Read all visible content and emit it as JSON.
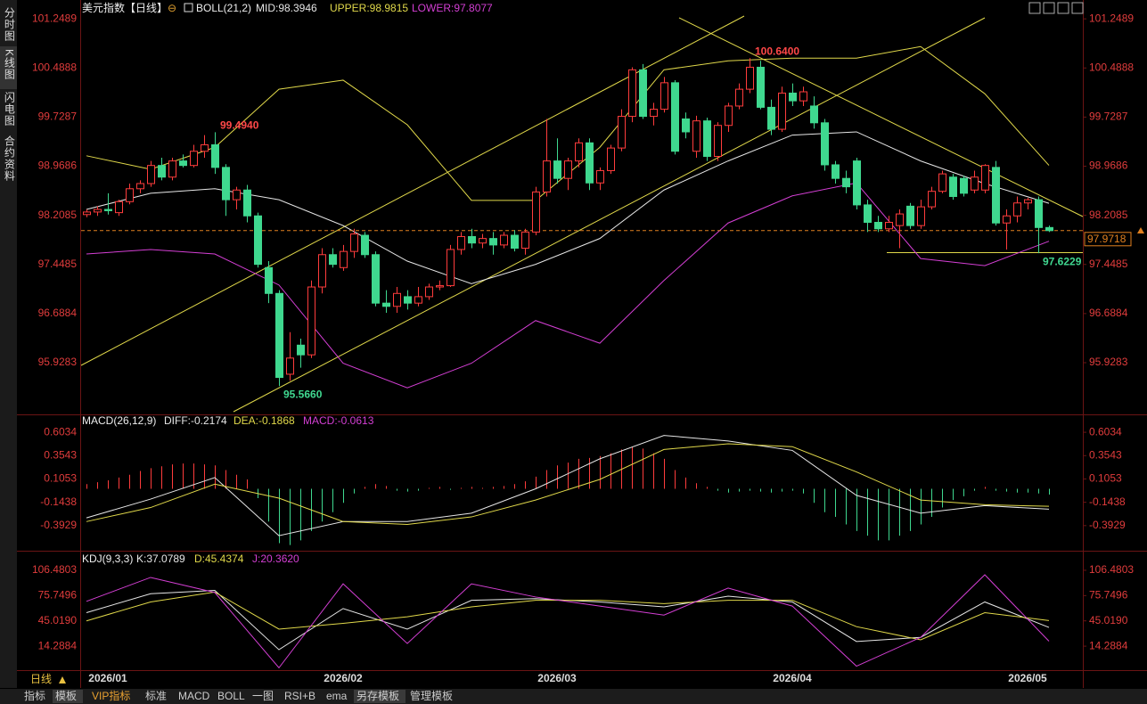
{
  "ui": {
    "sidebar": [
      "分时图",
      "K线图",
      "闪电图",
      "合约资料"
    ],
    "period": "日线",
    "toolbar": [
      "指标",
      "模板",
      "VIP指标",
      "标准",
      "MACD",
      "BOLL",
      "一图",
      "RSI+B",
      "ema",
      "另存模板",
      "管理模板"
    ]
  },
  "chart_data": [
    {
      "type": "candlestick",
      "title": "美元指数【日线】",
      "indicator": "BOLL(21,2)",
      "categories": [
        null,
        null,
        "2026/01",
        null,
        null,
        null,
        null,
        null,
        null,
        null,
        null,
        null,
        null,
        null,
        null,
        null,
        null,
        null,
        null,
        null,
        null,
        null,
        null,
        null,
        "2026/02",
        null,
        null,
        null,
        null,
        null,
        null,
        null,
        null,
        null,
        null,
        null,
        null,
        null,
        null,
        null,
        null,
        null,
        null,
        null,
        "2026/03",
        null,
        null,
        null,
        null,
        null,
        null,
        null,
        null,
        null,
        null,
        null,
        null,
        null,
        null,
        null,
        null,
        null,
        null,
        null,
        null,
        null,
        "2026/04",
        null,
        null,
        null,
        null,
        null,
        null,
        null,
        null,
        null,
        null,
        null,
        null,
        null,
        null,
        null,
        null,
        null,
        null,
        null,
        null,
        null,
        "2026/05",
        null,
        null
      ],
      "open": [
        98.22,
        98.26,
        98.3,
        98.25,
        98.42,
        98.62,
        98.7,
        98.98,
        98.8,
        99.05,
        98.98,
        99.2,
        99.3,
        98.95,
        98.45,
        98.6,
        98.2,
        97.4,
        97.0,
        95.75,
        96.2,
        96.05,
        97.1,
        97.6,
        97.4,
        97.65,
        97.9,
        97.6,
        96.85,
        96.8,
        96.95,
        96.85,
        96.95,
        97.1,
        97.12,
        97.68,
        97.88,
        97.78,
        97.85,
        97.75,
        97.9,
        97.7,
        97.95,
        98.57,
        99.05,
        98.78,
        99.05,
        99.33,
        98.71,
        98.9,
        99.25,
        99.74,
        100.46,
        99.74,
        99.85,
        100.26,
        99.7,
        99.2,
        99.67,
        99.12,
        99.6,
        99.9,
        100.16,
        100.5,
        99.88,
        99.54,
        100.1,
        99.98,
        99.9,
        99.64,
        98.99,
        98.78,
        99.05,
        98.37,
        98.1,
        98.0,
        98.05,
        98.35,
        98.05,
        98.34,
        98.58,
        98.8,
        98.78,
        98.6,
        98.6,
        98.95,
        98.09,
        98.2,
        98.4,
        98.45,
        98.02
      ],
      "high": [
        98.3,
        98.35,
        98.55,
        98.45,
        98.7,
        98.75,
        99.05,
        99.1,
        99.1,
        99.15,
        99.3,
        99.45,
        99.494,
        99.0,
        98.65,
        98.68,
        98.25,
        97.5,
        97.05,
        96.4,
        96.3,
        97.2,
        97.7,
        97.7,
        97.75,
        98.0,
        97.95,
        97.65,
        97.05,
        97.1,
        97.05,
        97.1,
        97.15,
        97.2,
        97.75,
        97.95,
        98.0,
        97.92,
        97.95,
        97.95,
        97.98,
        98.0,
        98.65,
        99.7,
        99.4,
        99.1,
        99.4,
        99.4,
        98.95,
        99.3,
        99.85,
        100.5,
        100.55,
        99.95,
        100.35,
        100.3,
        99.8,
        99.75,
        99.72,
        99.65,
        99.95,
        100.25,
        100.64,
        100.6,
        100.0,
        100.2,
        100.25,
        100.2,
        100.05,
        99.7,
        99.05,
        98.9,
        99.1,
        98.45,
        98.2,
        98.2,
        98.3,
        98.4,
        98.45,
        98.65,
        98.9,
        98.85,
        98.82,
        98.9,
        99.0,
        99.05,
        98.3,
        98.5,
        98.48,
        98.5,
        98.05
      ],
      "low": [
        98.18,
        98.2,
        98.22,
        98.2,
        98.38,
        98.55,
        98.65,
        98.75,
        98.75,
        98.95,
        98.95,
        99.1,
        98.85,
        98.2,
        98.3,
        98.1,
        97.4,
        96.85,
        95.566,
        95.65,
        95.85,
        96.0,
        97.0,
        97.4,
        97.35,
        97.55,
        97.55,
        96.8,
        96.7,
        96.7,
        96.75,
        96.8,
        96.9,
        97.05,
        97.1,
        97.6,
        97.7,
        97.7,
        97.6,
        97.7,
        97.65,
        97.6,
        97.9,
        98.5,
        98.7,
        98.6,
        98.95,
        98.6,
        98.6,
        98.85,
        99.2,
        99.65,
        99.7,
        99.6,
        99.8,
        99.15,
        99.4,
        99.1,
        99.05,
        99.05,
        99.5,
        99.85,
        100.1,
        99.85,
        99.45,
        99.5,
        99.9,
        99.9,
        99.55,
        98.9,
        98.7,
        98.55,
        98.3,
        97.95,
        97.95,
        97.95,
        97.7,
        98.0,
        98.0,
        98.3,
        98.55,
        98.45,
        98.5,
        98.55,
        98.55,
        98.05,
        97.68,
        98.1,
        98.3,
        97.6229,
        97.95
      ],
      "close": [
        98.26,
        98.3,
        98.28,
        98.42,
        98.62,
        98.7,
        98.98,
        98.8,
        99.05,
        98.98,
        99.2,
        99.3,
        98.95,
        98.45,
        98.6,
        98.2,
        97.45,
        97.0,
        95.7,
        96.0,
        96.05,
        97.1,
        97.6,
        97.45,
        97.65,
        97.92,
        97.6,
        96.85,
        96.8,
        97.0,
        96.85,
        96.95,
        97.1,
        97.12,
        97.68,
        97.88,
        97.78,
        97.85,
        97.75,
        97.9,
        97.7,
        97.95,
        98.57,
        99.05,
        98.78,
        99.05,
        99.33,
        98.71,
        98.9,
        99.25,
        99.74,
        100.46,
        99.74,
        99.85,
        100.26,
        99.2,
        99.5,
        99.67,
        99.12,
        99.6,
        99.9,
        100.16,
        100.5,
        99.88,
        99.54,
        100.1,
        99.98,
        100.12,
        99.64,
        98.99,
        98.78,
        98.65,
        98.37,
        98.1,
        98.0,
        98.1,
        98.23,
        98.05,
        98.34,
        98.58,
        98.85,
        98.5,
        98.55,
        98.8,
        98.98,
        98.09,
        98.2,
        98.4,
        98.45,
        98.02,
        97.9718
      ],
      "high_labels": [
        null,
        null,
        null,
        null,
        null,
        null,
        null,
        null,
        null,
        null,
        null,
        null,
        "99.4940",
        null,
        null,
        null,
        null,
        null,
        null,
        null,
        null,
        null,
        null,
        null,
        null,
        null,
        null,
        null,
        null,
        null,
        null,
        null,
        null,
        null,
        null,
        null,
        null,
        null,
        null,
        null,
        null,
        null,
        null,
        null,
        null,
        null,
        null,
        null,
        null,
        null,
        null,
        null,
        null,
        null,
        null,
        null,
        null,
        null,
        null,
        null,
        null,
        null,
        "100.6400",
        null,
        null,
        null,
        null,
        null,
        null,
        null,
        null,
        null,
        null,
        null,
        null,
        null,
        null,
        null,
        null,
        null,
        null,
        null,
        null,
        null,
        null,
        null,
        null,
        null,
        null,
        null,
        null
      ],
      "low_labels": [
        null,
        null,
        null,
        null,
        null,
        null,
        null,
        null,
        null,
        null,
        null,
        null,
        null,
        null,
        null,
        null,
        null,
        null,
        "95.5660",
        null,
        null,
        null,
        null,
        null,
        null,
        null,
        null,
        null,
        null,
        null,
        null,
        null,
        null,
        null,
        null,
        null,
        null,
        null,
        null,
        null,
        null,
        null,
        null,
        null,
        null,
        null,
        null,
        null,
        null,
        null,
        null,
        null,
        null,
        null,
        null,
        null,
        null,
        null,
        null,
        null,
        null,
        null,
        null,
        null,
        null,
        null,
        null,
        null,
        null,
        null,
        null,
        null,
        null,
        null,
        null,
        null,
        null,
        null,
        null,
        null,
        null,
        null,
        null,
        null,
        null,
        null,
        null,
        null,
        null,
        "97.6229",
        null
      ],
      "close_labels": [
        null,
        null,
        null,
        null,
        null,
        null,
        null,
        null,
        null,
        null,
        null,
        null,
        null,
        null,
        null,
        null,
        null,
        null,
        null,
        null,
        null,
        null,
        null,
        null,
        null,
        null,
        null,
        null,
        null,
        null,
        null,
        null,
        null,
        null,
        null,
        null,
        null,
        null,
        null,
        null,
        null,
        null,
        null,
        null,
        null,
        null,
        null,
        null,
        null,
        null,
        null,
        null,
        null,
        null,
        null,
        null,
        null,
        null,
        null,
        null,
        null,
        null,
        null,
        null,
        null,
        null,
        null,
        null,
        null,
        null,
        null,
        null,
        null,
        null,
        null,
        null,
        null,
        null,
        null,
        null,
        null,
        null,
        null,
        null,
        null,
        null,
        null,
        null,
        null,
        null,
        "97.9718"
      ],
      "up_color": "#ff3c3c",
      "down_color": "#3fd88f",
      "series": [
        {
          "name": "MID:98.3946",
          "color": "#e6e6e6",
          "x": [
            0,
            6,
            12,
            18,
            24,
            30,
            36,
            42,
            48,
            54,
            60,
            66,
            72,
            78,
            84,
            90
          ],
          "values": [
            98.3,
            98.55,
            98.62,
            98.45,
            98.05,
            97.5,
            97.15,
            97.45,
            97.85,
            98.6,
            99.05,
            99.45,
            99.5,
            99.05,
            98.7,
            98.3946
          ]
        },
        {
          "name": "UPPER:98.9815",
          "color": "#e0d84a",
          "x": [
            0,
            6,
            12,
            18,
            24,
            30,
            36,
            42,
            48,
            54,
            60,
            66,
            72,
            78,
            84,
            90
          ],
          "values": [
            99.13,
            98.92,
            99.26,
            100.16,
            100.3,
            99.61,
            98.44,
            98.44,
            99.26,
            100.46,
            100.6,
            100.64,
            100.64,
            100.82,
            100.09,
            98.9815
          ]
        },
        {
          "name": "LOWER:97.8077",
          "color": "#d43fd4",
          "x": [
            0,
            6,
            12,
            18,
            24,
            30,
            36,
            42,
            48,
            54,
            60,
            66,
            72,
            78,
            84,
            90
          ],
          "values": [
            97.61,
            97.68,
            97.61,
            97.13,
            95.92,
            95.54,
            95.92,
            96.58,
            96.23,
            97.2,
            98.09,
            98.51,
            98.71,
            97.54,
            97.43,
            97.8077
          ]
        }
      ],
      "ylim": [
        95.17,
        101.43
      ],
      "yticks": [
        101.2489,
        100.4888,
        99.7287,
        98.9686,
        98.2085,
        97.4485,
        96.6884,
        95.9283
      ]
    },
    {
      "type": "macd",
      "title": "MACD(26,12,9)",
      "series": [
        {
          "name": "DIFF:-0.2174",
          "color": "#e6e6e6",
          "x": [
            0,
            6,
            12,
            18,
            24,
            30,
            36,
            42,
            48,
            54,
            60,
            66,
            72,
            78,
            84,
            90
          ],
          "values": [
            -0.31,
            -0.11,
            0.12,
            -0.5,
            -0.35,
            -0.35,
            -0.26,
            0.0,
            0.32,
            0.57,
            0.51,
            0.41,
            -0.07,
            -0.26,
            -0.18,
            -0.2174
          ]
        },
        {
          "name": "DEA:-0.1868",
          "color": "#e0d84a",
          "x": [
            0,
            6,
            12,
            18,
            24,
            30,
            36,
            42,
            48,
            54,
            60,
            66,
            72,
            78,
            84,
            90
          ],
          "values": [
            -0.35,
            -0.2,
            0.05,
            -0.1,
            -0.35,
            -0.38,
            -0.3,
            -0.12,
            0.1,
            0.42,
            0.48,
            0.45,
            0.18,
            -0.12,
            -0.17,
            -0.1868
          ]
        },
        {
          "name": "MACD:-0.0613",
          "color": "#d43fd4",
          "up_color": "#ff3c3c",
          "down_color": "#3fd88f",
          "values": [
            0.05,
            0.07,
            0.09,
            0.12,
            0.15,
            0.19,
            0.22,
            0.24,
            0.26,
            0.27,
            0.27,
            0.26,
            0.25,
            0.2,
            0.15,
            0.1,
            -0.1,
            -0.35,
            -0.58,
            -0.6,
            -0.55,
            -0.45,
            -0.35,
            -0.25,
            -0.15,
            -0.05,
            0.02,
            0.05,
            0.03,
            -0.02,
            -0.03,
            -0.02,
            0.01,
            0.02,
            -0.01,
            0.01,
            0.02,
            0.01,
            0.02,
            0.03,
            0.05,
            0.08,
            0.13,
            0.2,
            0.25,
            0.28,
            0.32,
            0.33,
            0.35,
            0.38,
            0.42,
            0.45,
            0.43,
            0.38,
            0.32,
            0.2,
            0.12,
            0.06,
            0.02,
            -0.02,
            -0.04,
            -0.03,
            -0.02,
            -0.03,
            -0.04,
            -0.03,
            -0.02,
            -0.05,
            -0.15,
            -0.25,
            -0.3,
            -0.38,
            -0.45,
            -0.5,
            -0.55,
            -0.55,
            -0.5,
            -0.45,
            -0.38,
            -0.3,
            -0.2,
            -0.12,
            -0.08,
            -0.02,
            0.02,
            -0.02,
            -0.03,
            -0.04,
            -0.04,
            -0.05,
            -0.0613
          ]
        }
      ],
      "ylim": [
        -0.604,
        0.766
      ],
      "yticks": [
        0.6034,
        0.3543,
        0.1053,
        -0.1438,
        -0.3929
      ]
    },
    {
      "type": "kdj",
      "title": "KDJ(9,3,3)",
      "series": [
        {
          "name": "K:37.0789",
          "color": "#e6e6e6",
          "x": [
            0,
            6,
            12,
            18,
            24,
            30,
            36,
            42,
            48,
            54,
            60,
            66,
            72,
            78,
            84,
            90
          ],
          "values": [
            55,
            78,
            82,
            10,
            60,
            35,
            70,
            72,
            68,
            62,
            75,
            68,
            20,
            25,
            68,
            37.0789
          ]
        },
        {
          "name": "D:45.4374",
          "color": "#e0d84a",
          "x": [
            0,
            6,
            12,
            18,
            24,
            30,
            36,
            42,
            48,
            54,
            60,
            66,
            72,
            78,
            84,
            90
          ],
          "values": [
            45,
            68,
            80,
            35,
            42,
            50,
            62,
            70,
            70,
            66,
            70,
            70,
            38,
            22,
            55,
            45.4374
          ]
        },
        {
          "name": "J:20.3620",
          "color": "#d43fd4",
          "x": [
            0,
            6,
            12,
            18,
            24,
            30,
            36,
            42,
            48,
            54,
            60,
            66,
            72,
            78,
            84,
            90
          ],
          "values": [
            68.7,
            97.8,
            79.5,
            -12,
            90,
            17.5,
            90,
            74,
            63,
            52,
            84.9,
            63,
            -10,
            25,
            101,
            20.362
          ]
        }
      ],
      "ylim": [
        -14.84,
        122.66
      ],
      "yticks": [
        106.4803,
        75.7496,
        {
          "value": 45.019,
          "label": "45.0190"
        },
        14.2884
      ]
    }
  ]
}
